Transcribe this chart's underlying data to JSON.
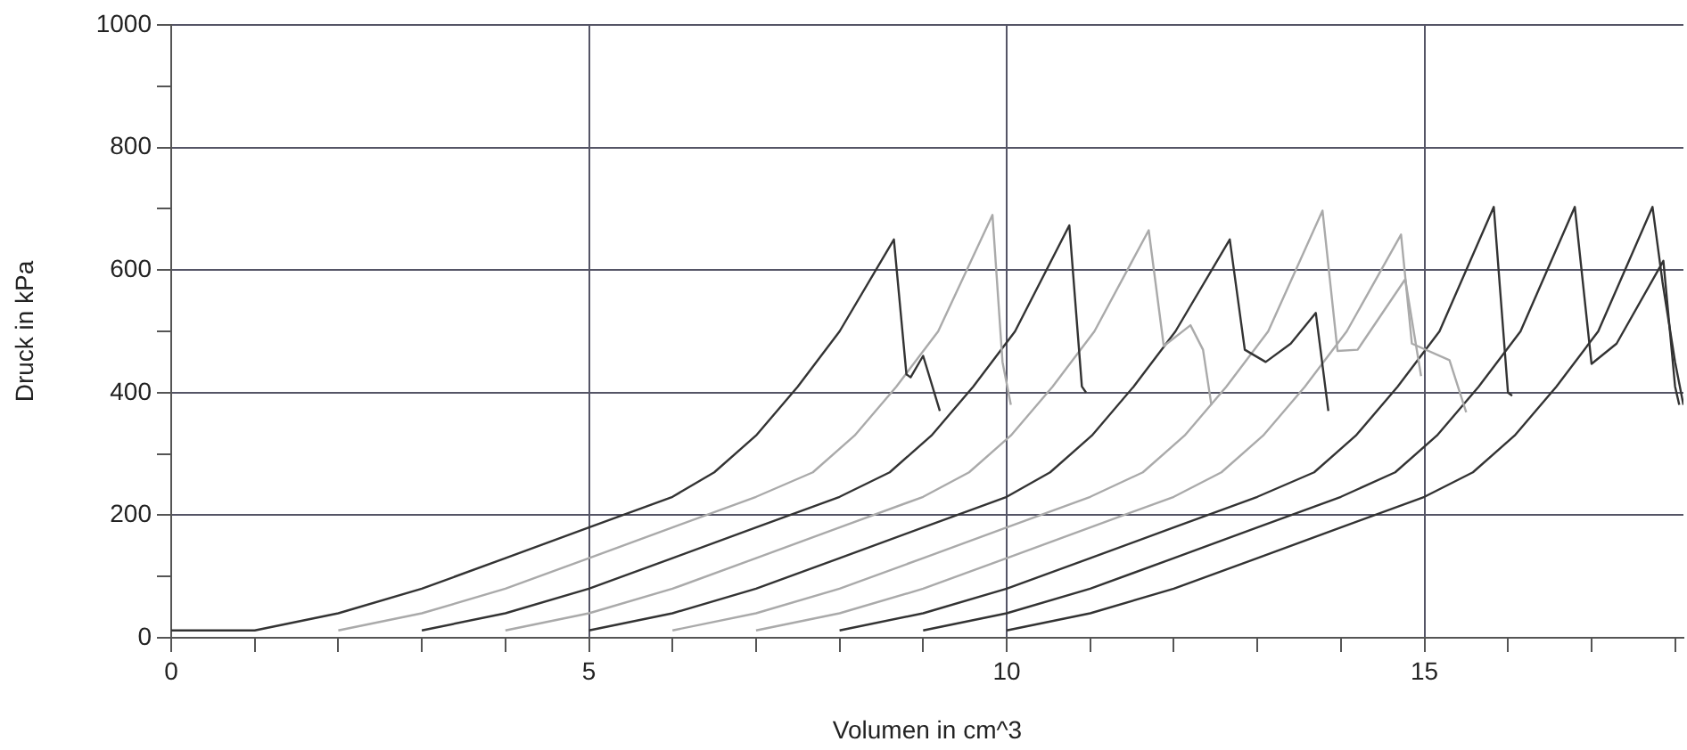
{
  "chart_data": {
    "type": "line",
    "xlabel": "Volumen in cm^3",
    "ylabel": "Druck in kPa",
    "xlim": [
      0,
      18.1
    ],
    "ylim": [
      0,
      1000
    ],
    "xticks": [
      0,
      {
        "value": 1,
        "label": null
      },
      {
        "value": 2,
        "label": null
      },
      {
        "value": 3,
        "label": null
      },
      {
        "value": 4,
        "label": null
      },
      5,
      {
        "value": 6,
        "label": null
      },
      {
        "value": 7,
        "label": null
      },
      {
        "value": 8,
        "label": null
      },
      {
        "value": 9,
        "label": null
      },
      10,
      {
        "value": 11,
        "label": null
      },
      {
        "value": 12,
        "label": null
      },
      {
        "value": 13,
        "label": null
      },
      {
        "value": 14,
        "label": null
      },
      15,
      {
        "value": 16,
        "label": null
      },
      {
        "value": 17,
        "label": null
      },
      {
        "value": 18,
        "label": null
      }
    ],
    "yticks": [
      0,
      {
        "value": 100,
        "label": null
      },
      200,
      {
        "value": 300,
        "label": null
      },
      400,
      {
        "value": 500,
        "label": null
      },
      600,
      {
        "value": 700,
        "label": null
      },
      800,
      {
        "value": 900,
        "label": null
      },
      1000
    ],
    "grid": true,
    "legend": false,
    "marker": "none",
    "line_style": "solid",
    "series": [
      {
        "color": "#333333",
        "x": [
          0,
          1,
          2,
          3,
          4,
          5,
          6,
          6.5,
          7,
          7.5,
          8,
          8.65,
          8.8,
          8.85,
          9,
          9.2
        ],
        "values": [
          12,
          12,
          40,
          80,
          130,
          180,
          230,
          270,
          330,
          410,
          500,
          650,
          430,
          425,
          460,
          370
        ]
      },
      {
        "color": "#aaaaaa",
        "x": [
          2,
          3,
          4,
          5,
          6,
          7,
          7.68,
          8.18,
          8.68,
          9.18,
          9.83,
          9.95,
          10.05
        ],
        "values": [
          12,
          40,
          80,
          130,
          180,
          230,
          270,
          330,
          410,
          500,
          690,
          450,
          380
        ]
      },
      {
        "color": "#333333",
        "x": [
          3,
          4,
          5,
          6,
          7,
          8,
          8.6,
          9.1,
          9.6,
          10.1,
          10.75,
          10.9,
          10.95
        ],
        "values": [
          12,
          40,
          80,
          130,
          180,
          230,
          270,
          330,
          410,
          500,
          673,
          410,
          400
        ]
      },
      {
        "color": "#aaaaaa",
        "x": [
          4,
          5,
          6,
          7,
          8,
          9,
          9.55,
          10.05,
          10.55,
          11.05,
          11.7,
          11.88,
          12.2,
          12.35,
          12.45
        ],
        "values": [
          12,
          40,
          80,
          130,
          180,
          230,
          270,
          330,
          410,
          500,
          665,
          476,
          510,
          470,
          380
        ]
      },
      {
        "color": "#333333",
        "x": [
          5,
          6,
          7,
          8,
          9,
          10,
          10.52,
          11.02,
          11.52,
          12.02,
          12.67,
          12.85,
          13.1,
          13.4,
          13.7,
          13.85
        ],
        "values": [
          12,
          40,
          80,
          130,
          180,
          230,
          270,
          330,
          410,
          500,
          650,
          470,
          450,
          480,
          530,
          370
        ]
      },
      {
        "color": "#aaaaaa",
        "x": [
          6,
          7,
          8,
          9,
          10,
          11,
          11.63,
          12.13,
          12.63,
          13.13,
          13.78,
          13.96,
          14.2,
          14.77,
          14.96
        ],
        "values": [
          12,
          40,
          80,
          130,
          180,
          230,
          270,
          330,
          410,
          500,
          697,
          468,
          470,
          585,
          427
        ]
      },
      {
        "color": "#aaaaaa",
        "x": [
          7,
          8,
          9,
          10,
          11,
          12,
          12.57,
          13.07,
          13.57,
          14.07,
          14.72,
          14.85,
          15.3,
          15.5
        ],
        "values": [
          12,
          40,
          80,
          130,
          180,
          230,
          270,
          330,
          410,
          500,
          658,
          480,
          453,
          368
        ]
      },
      {
        "color": "#333333",
        "x": [
          8,
          9,
          10,
          11,
          12,
          13,
          13.68,
          14.18,
          14.68,
          15.18,
          15.83,
          16,
          16.05
        ],
        "values": [
          12,
          40,
          80,
          130,
          180,
          230,
          270,
          330,
          410,
          500,
          703,
          400,
          395
        ]
      },
      {
        "color": "#333333",
        "x": [
          9,
          10,
          11,
          12,
          13,
          14,
          14.65,
          15.15,
          15.65,
          16.15,
          16.8,
          17,
          17.3,
          17.86,
          18,
          18.05
        ],
        "values": [
          12,
          40,
          80,
          130,
          180,
          230,
          270,
          330,
          410,
          500,
          703,
          447,
          480,
          615,
          410,
          380
        ]
      },
      {
        "color": "#333333",
        "x": [
          10,
          11,
          12,
          13,
          14,
          15,
          15.58,
          16.08,
          16.58,
          17.08,
          17.73,
          17.85,
          18,
          18.1
        ],
        "values": [
          12,
          40,
          80,
          130,
          180,
          230,
          270,
          330,
          410,
          500,
          703,
          580,
          450,
          380
        ]
      }
    ]
  }
}
